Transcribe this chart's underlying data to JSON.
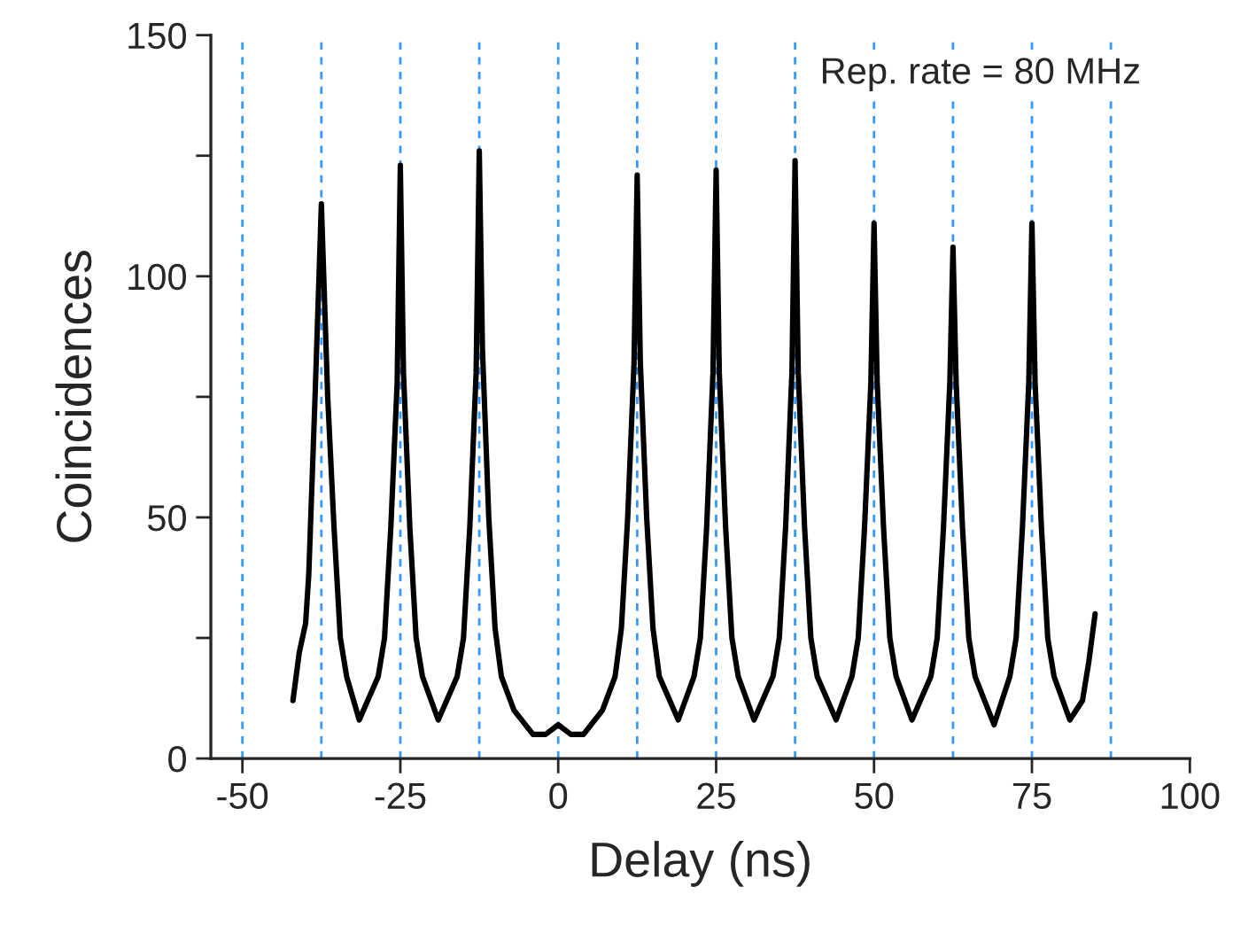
{
  "chart_data": {
    "type": "line",
    "xlabel": "Delay (ns)",
    "ylabel": "Coincidences",
    "annotations": [
      "Rep. rate = 80 MHz"
    ],
    "series": [
      {
        "color": "#000000",
        "x": [
          -42,
          -41,
          -40,
          -39.5,
          -38.5,
          -38,
          -37.5,
          -37,
          -36.5,
          -35.5,
          -34.5,
          -33.5,
          -31.5,
          -28.5,
          -27.5,
          -26.5,
          -25.5,
          -25,
          -24.5,
          -23.5,
          -22.5,
          -21.5,
          -19,
          -16,
          -15,
          -14,
          -13,
          -12.5,
          -12,
          -11,
          -10,
          -9,
          -7,
          -4,
          -2,
          0,
          2,
          4,
          7,
          9,
          10,
          11,
          12,
          12.5,
          13,
          14,
          15,
          16,
          19,
          21.5,
          22.5,
          23.5,
          24.5,
          25,
          25.5,
          26.5,
          27.5,
          28.5,
          31,
          34,
          35,
          36,
          37,
          37.5,
          38,
          39,
          40,
          41,
          44,
          46.5,
          47.5,
          48.5,
          49.5,
          50,
          50.5,
          51.5,
          52.5,
          53.5,
          56,
          59,
          60,
          61,
          62,
          62.5,
          63,
          64,
          65,
          66,
          69,
          71.5,
          72.5,
          73.5,
          74.5,
          75,
          75.5,
          76.5,
          77.5,
          78.5,
          81,
          83,
          84,
          85
        ],
        "values": [
          12,
          22,
          28,
          38,
          75,
          95,
          115,
          95,
          75,
          48,
          25,
          17,
          8,
          17,
          25,
          48,
          78,
          123,
          80,
          48,
          25,
          17,
          8,
          17,
          25,
          48,
          80,
          126,
          85,
          50,
          27,
          17,
          10,
          5,
          5,
          7,
          5,
          5,
          10,
          17,
          27,
          50,
          82,
          121,
          82,
          50,
          27,
          17,
          8,
          17,
          25,
          48,
          80,
          122,
          80,
          48,
          25,
          17,
          8,
          17,
          25,
          48,
          80,
          124,
          80,
          48,
          25,
          17,
          8,
          17,
          25,
          48,
          78,
          111,
          78,
          48,
          25,
          17,
          8,
          17,
          25,
          48,
          78,
          106,
          78,
          48,
          25,
          17,
          7,
          17,
          25,
          48,
          78,
          111,
          78,
          48,
          25,
          17,
          8,
          12,
          20,
          30
        ]
      }
    ],
    "xlim": [
      -55,
      100
    ],
    "xticks": [
      -50,
      -25,
      0,
      25,
      50,
      75,
      100
    ],
    "ylim": [
      0,
      150
    ],
    "yticks": [
      0,
      {
        "value": 25,
        "label": null
      },
      50,
      {
        "value": 75,
        "label": null
      },
      100,
      {
        "value": 125,
        "label": null
      },
      150
    ],
    "ref_lines": [
      {
        "axis": "x",
        "value": -50,
        "color": "#3399ff",
        "line_style": "dashed"
      },
      {
        "axis": "x",
        "value": -37.5,
        "color": "#3399ff",
        "line_style": "dashed"
      },
      {
        "axis": "x",
        "value": -25,
        "color": "#3399ff",
        "line_style": "dashed"
      },
      {
        "axis": "x",
        "value": -12.5,
        "color": "#3399ff",
        "line_style": "dashed"
      },
      {
        "axis": "x",
        "value": 0,
        "color": "#3399ff",
        "line_style": "dashed"
      },
      {
        "axis": "x",
        "value": 12.5,
        "color": "#3399ff",
        "line_style": "dashed"
      },
      {
        "axis": "x",
        "value": 25,
        "color": "#3399ff",
        "line_style": "dashed"
      },
      {
        "axis": "x",
        "value": 37.5,
        "color": "#3399ff",
        "line_style": "dashed"
      },
      {
        "axis": "x",
        "value": 50,
        "color": "#3399ff",
        "line_style": "dashed"
      },
      {
        "axis": "x",
        "value": 62.5,
        "color": "#3399ff",
        "line_style": "dashed"
      },
      {
        "axis": "x",
        "value": 75,
        "color": "#3399ff",
        "line_style": "dashed"
      },
      {
        "axis": "x",
        "value": 87.5,
        "color": "#3399ff",
        "line_style": "dashed"
      }
    ],
    "grid": false,
    "legend": false,
    "marker": "none",
    "line_style": "solid"
  }
}
